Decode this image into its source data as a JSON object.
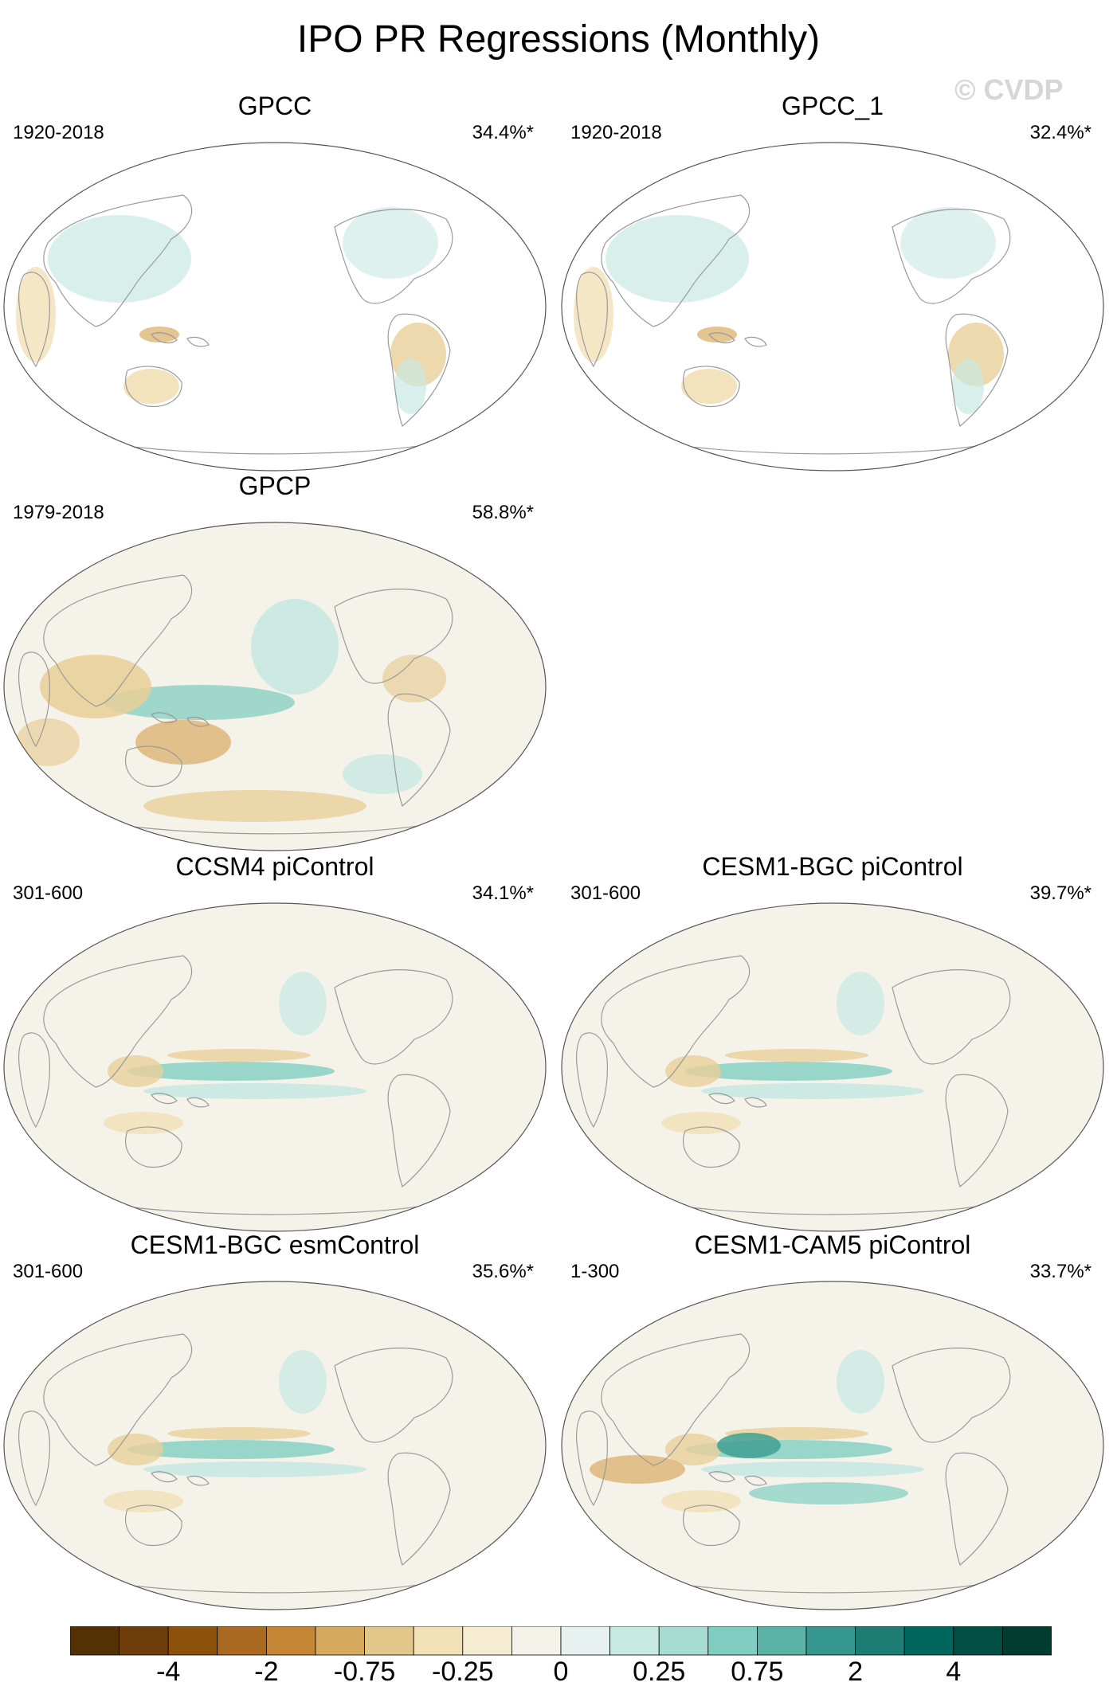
{
  "title": "IPO PR Regressions (Monthly)",
  "watermark": "© CVDP",
  "panels": [
    {
      "title": "GPCC",
      "period": "1920-2018",
      "percent": "34.4%*",
      "kind": "land"
    },
    {
      "title": "GPCC_1",
      "period": "1920-2018",
      "percent": "32.4%*",
      "kind": "land"
    },
    {
      "title": "GPCP",
      "period": "1979-2018",
      "percent": "58.8%*",
      "kind": "obs"
    },
    {
      "title": "CCSM4 piControl",
      "period": "301-600",
      "percent": "34.1%*",
      "kind": "model"
    },
    {
      "title": "CESM1-BGC piControl",
      "period": "301-600",
      "percent": "39.7%*",
      "kind": "model"
    },
    {
      "title": "CESM1-BGC esmControl",
      "period": "301-600",
      "percent": "35.6%*",
      "kind": "model"
    },
    {
      "title": "CESM1-CAM5 piControl",
      "period": "1-300",
      "percent": "33.7%*",
      "kind": "model"
    }
  ],
  "colorbar": {
    "colors": [
      "#543005",
      "#6f3d0c",
      "#8c510a",
      "#a96920",
      "#c48534",
      "#d6a95e",
      "#e3c689",
      "#f2e0b6",
      "#f5ecd2",
      "#f5f2ea",
      "#e7f2f0",
      "#c8e8e2",
      "#a6dcd2",
      "#80cdc1",
      "#5ab3a6",
      "#35978f",
      "#1d7d74",
      "#01665e",
      "#014e44",
      "#003c30"
    ],
    "labels": [
      "-4",
      "-2",
      "-0.75",
      "-0.25",
      "0",
      "0.25",
      "0.75",
      "2",
      "4"
    ]
  }
}
